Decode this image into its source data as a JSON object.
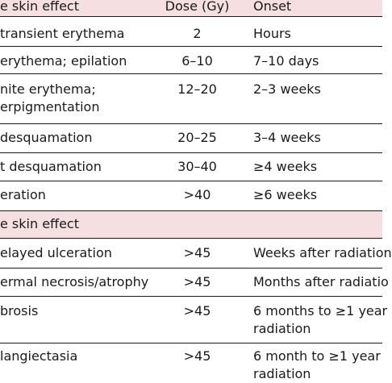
{
  "header": {
    "effect": "e skin effect",
    "dose": "Dose (Gy)",
    "onset": "Onset"
  },
  "acute_rows": [
    {
      "effect": "transient erythema",
      "dose": "2",
      "onset": "Hours"
    },
    {
      "effect": "erythema; epilation",
      "dose": "6–10",
      "onset": "7–10 days"
    },
    {
      "effect_line1": "nite erythema;",
      "effect_line2": "erpigmentation",
      "dose": "12–20",
      "onset": "2–3 weeks"
    },
    {
      "effect": "desquamation",
      "dose": "20–25",
      "onset": "3–4 weeks"
    },
    {
      "effect": "t desquamation",
      "dose": "30–40",
      "onset": "≥4 weeks"
    },
    {
      "effect": "eration",
      "dose": ">40",
      "onset": "≥6 weeks"
    }
  ],
  "subheader": {
    "effect": "e skin effect"
  },
  "late_rows": [
    {
      "effect": "elayed ulceration",
      "dose": ">45",
      "onset": "Weeks after radiation"
    },
    {
      "effect": "ermal necrosis/atrophy",
      "dose": ">45",
      "onset": "Months after radiatio"
    },
    {
      "effect": "brosis",
      "dose": ">45",
      "onset_line1": "6 months to ≥1 year",
      "onset_line2": "radiation"
    },
    {
      "effect": "langiectasia",
      "dose": ">45",
      "onset_line1": "6 month to ≥1 year",
      "onset_line2": "radiation"
    }
  ],
  "colors": {
    "header_band": "#f5dfe0",
    "text": "#1a1a1a"
  }
}
